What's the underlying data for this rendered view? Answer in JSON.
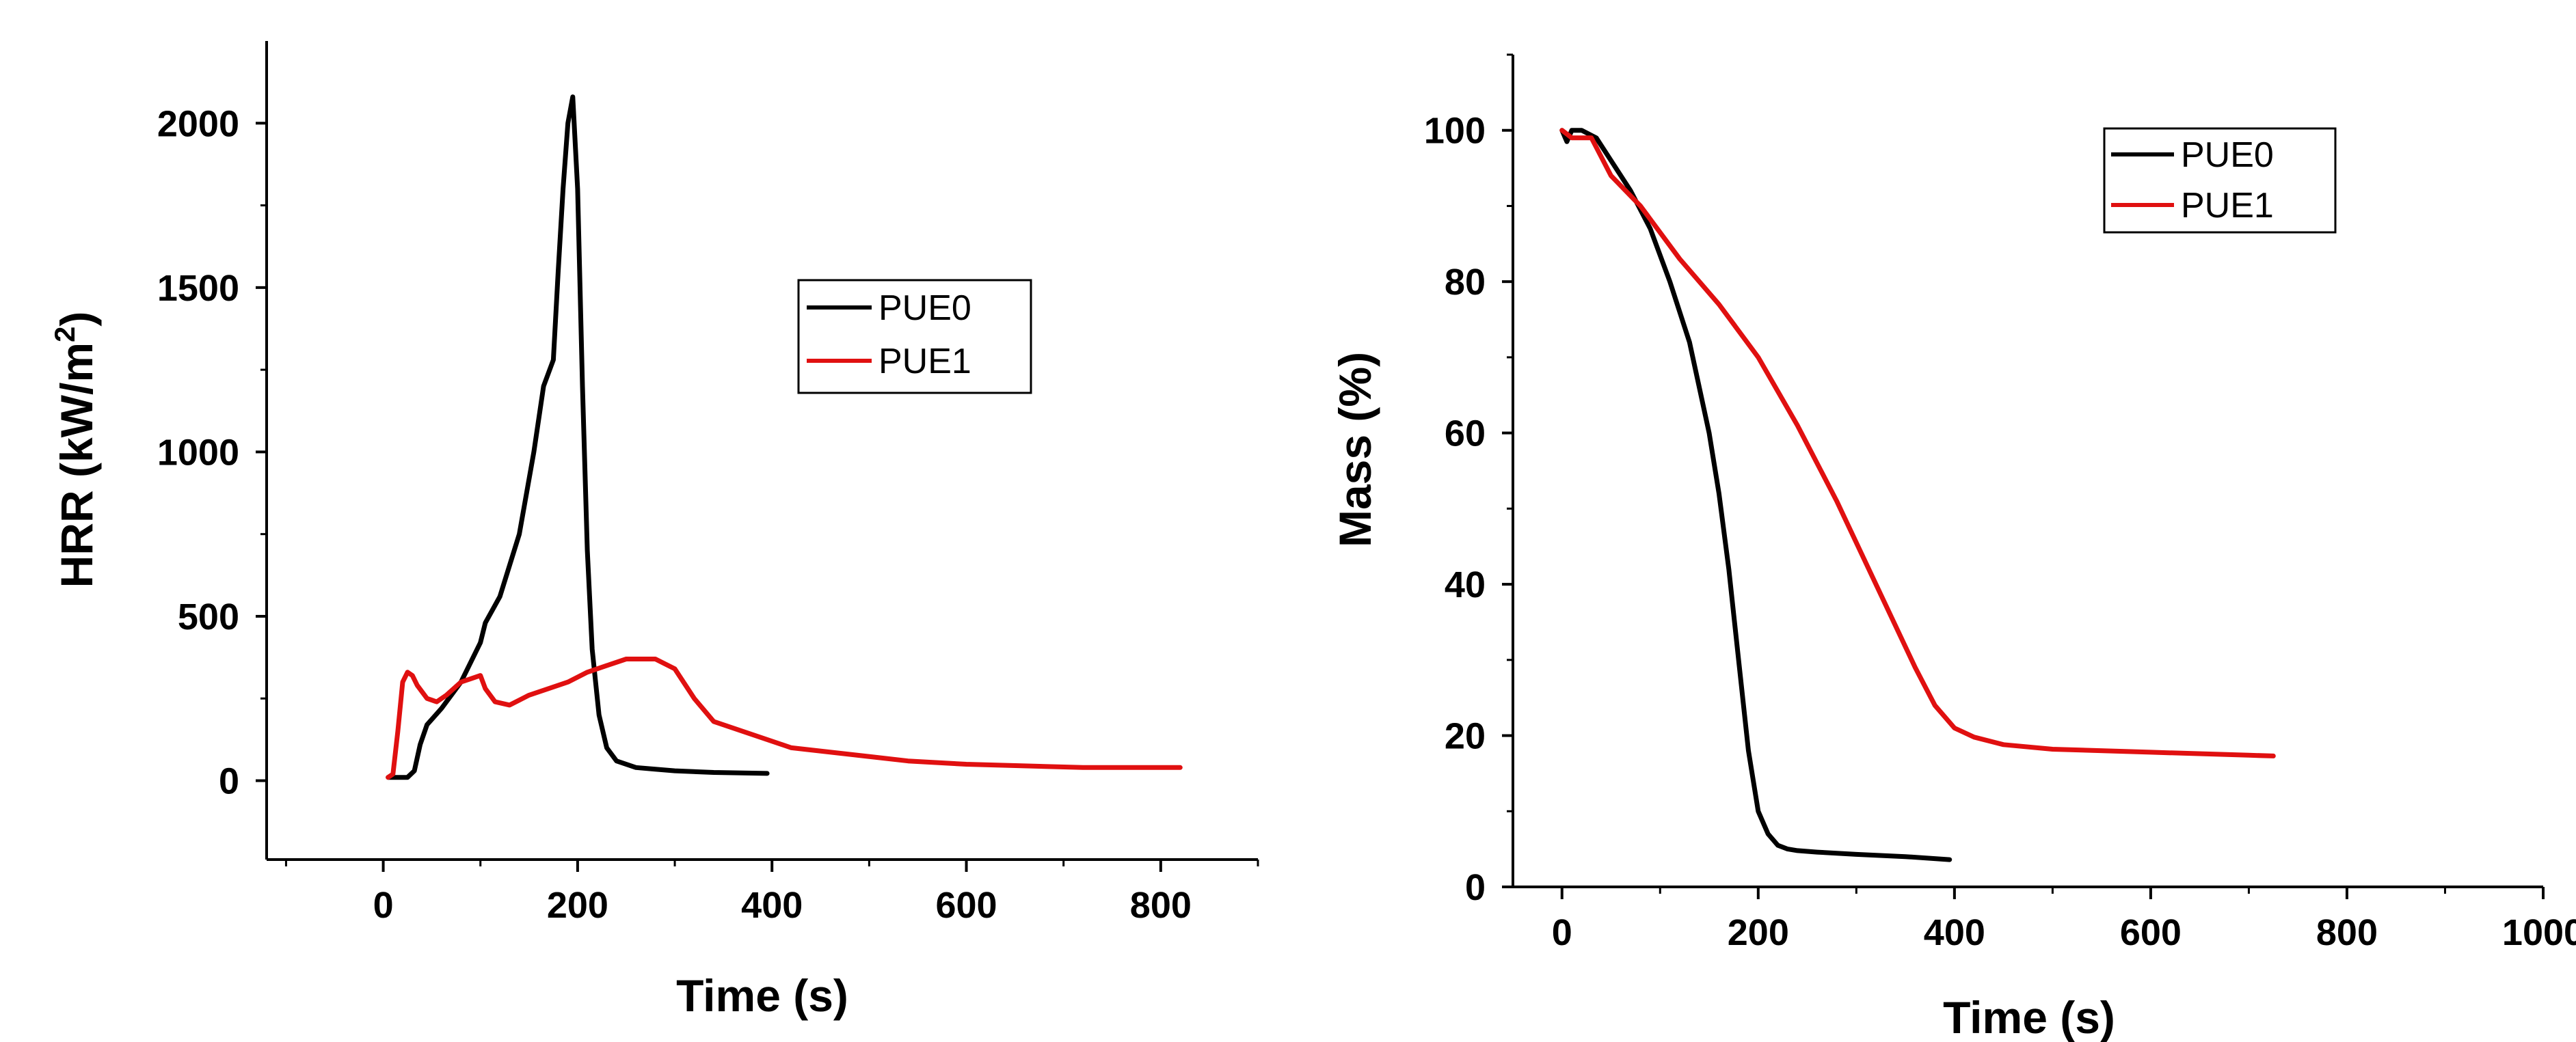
{
  "chart_data": [
    {
      "type": "line",
      "title": "",
      "xlabel": "Time (s)",
      "ylabel": "HRR (kW/m",
      "ylabel_superscript": "2",
      "ylabel_suffix": ")",
      "xlim": [
        -120,
        900
      ],
      "ylim": [
        -240,
        2250
      ],
      "xticks": [
        0,
        200,
        400,
        600,
        800
      ],
      "yticks": [
        0,
        500,
        1000,
        1500,
        2000
      ],
      "legend_position": "top-right",
      "series": [
        {
          "name": "PUE0",
          "color": "#000000",
          "x": [
            5,
            15,
            25,
            32,
            38,
            45,
            60,
            80,
            100,
            105,
            120,
            140,
            155,
            165,
            175,
            180,
            185,
            190,
            195,
            200,
            205,
            210,
            215,
            222,
            230,
            240,
            260,
            280,
            300,
            340,
            395
          ],
          "y": [
            10,
            10,
            10,
            30,
            110,
            170,
            220,
            300,
            420,
            480,
            560,
            750,
            1000,
            1200,
            1280,
            1550,
            1800,
            2000,
            2080,
            1800,
            1200,
            700,
            400,
            200,
            100,
            60,
            40,
            35,
            30,
            25,
            22
          ]
        },
        {
          "name": "PUE1",
          "color": "#e01010",
          "x": [
            5,
            10,
            15,
            20,
            25,
            30,
            35,
            45,
            55,
            65,
            80,
            90,
            100,
            105,
            115,
            130,
            150,
            170,
            190,
            210,
            230,
            250,
            265,
            280,
            300,
            320,
            340,
            380,
            420,
            480,
            540,
            600,
            660,
            720,
            780,
            820
          ],
          "y": [
            10,
            20,
            150,
            300,
            330,
            320,
            290,
            250,
            240,
            260,
            300,
            310,
            320,
            280,
            240,
            230,
            260,
            280,
            300,
            330,
            350,
            370,
            370,
            370,
            340,
            250,
            180,
            140,
            100,
            80,
            60,
            50,
            45,
            40,
            40,
            40
          ]
        }
      ]
    },
    {
      "type": "line",
      "title": "",
      "xlabel": "Time (s)",
      "ylabel": "Mass (%)",
      "xlim": [
        -50,
        1000
      ],
      "ylim": [
        0,
        110
      ],
      "xticks": [
        0,
        200,
        400,
        600,
        800,
        1000
      ],
      "yticks": [
        0,
        20,
        40,
        60,
        80,
        100
      ],
      "legend_position": "top-right",
      "series": [
        {
          "name": "PUE0",
          "color": "#000000",
          "x": [
            0,
            5,
            10,
            20,
            35,
            50,
            70,
            90,
            110,
            130,
            150,
            160,
            170,
            180,
            190,
            200,
            210,
            220,
            230,
            240,
            260,
            300,
            350,
            395
          ],
          "y": [
            100,
            98.5,
            100,
            100,
            99,
            96,
            92,
            87,
            80,
            72,
            60,
            52,
            42,
            30,
            18,
            10,
            7,
            5.5,
            5,
            4.8,
            4.6,
            4.3,
            4,
            3.6
          ]
        },
        {
          "name": "PUE1",
          "color": "#e01010",
          "x": [
            0,
            10,
            30,
            50,
            80,
            120,
            160,
            200,
            240,
            280,
            320,
            360,
            380,
            400,
            420,
            450,
            500,
            600,
            700,
            725
          ],
          "y": [
            100,
            99,
            99,
            94,
            90,
            83,
            77,
            70,
            61,
            51,
            40,
            29,
            24,
            21,
            19.8,
            18.8,
            18.2,
            17.8,
            17.4,
            17.3
          ]
        }
      ]
    }
  ]
}
